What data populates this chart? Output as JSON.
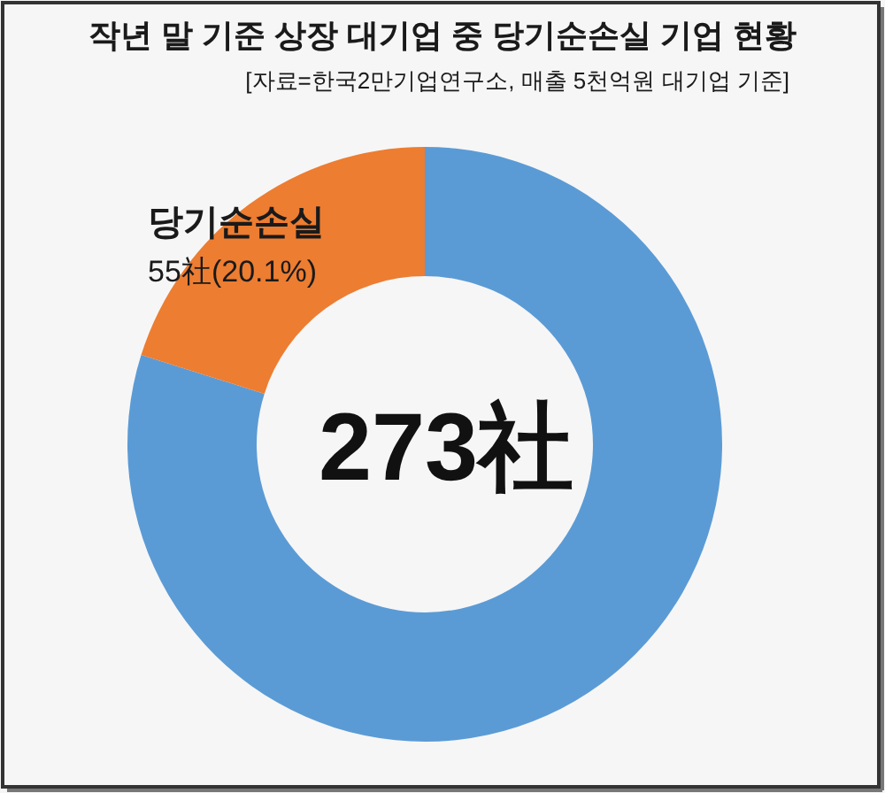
{
  "chart_data": {
    "type": "donut",
    "title": "작년 말 기준 상장  대기업 중 당기순손실 기업 현황",
    "subtitle": "[자료=한국2만기업연구소, 매출 5천억원 대기업 기준]",
    "categories": [
      null,
      "당기순손실"
    ],
    "values": [
      218,
      55
    ],
    "colors": [
      "#5b9bd5",
      "#ed7d31"
    ],
    "value_labels": [
      null,
      "55社(20.1%)"
    ],
    "annotations": [
      "273社"
    ]
  }
}
